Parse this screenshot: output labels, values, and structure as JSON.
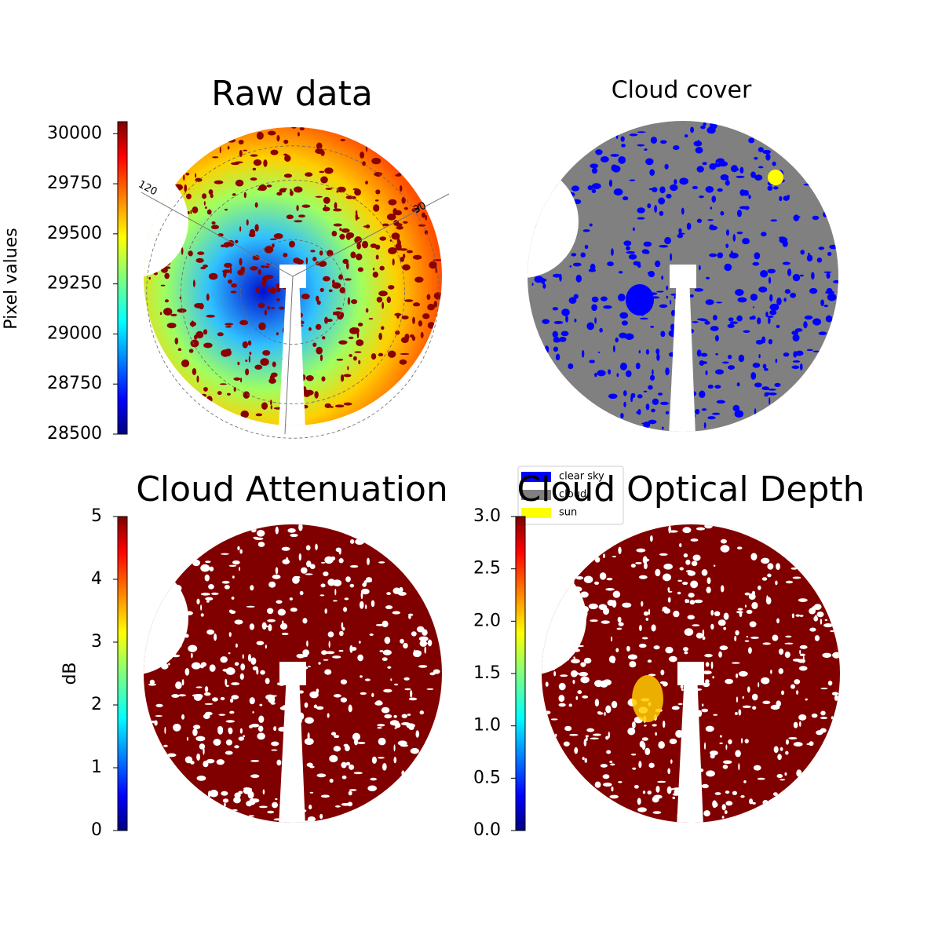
{
  "chart_data": [
    {
      "type": "image",
      "title": "Raw data",
      "colormap": "jet",
      "colorbar_label": "Pixel values",
      "clim": [
        28500,
        30060
      ],
      "cticks": [
        28500,
        28750,
        29000,
        29250,
        29500,
        29750,
        30000
      ],
      "annotations": [
        "120",
        "30"
      ]
    },
    {
      "type": "image",
      "title": "Cloud cover",
      "series": [
        {
          "name": "clear sky",
          "color": "#0000ff"
        },
        {
          "name": "cloud",
          "color": "#808080"
        },
        {
          "name": "sun",
          "color": "#ffff00"
        }
      ]
    },
    {
      "type": "image",
      "title": "Cloud Attenuation",
      "colormap": "jet",
      "colorbar_label": "dB",
      "clim": [
        0,
        5
      ],
      "cticks": [
        0,
        1,
        2,
        3,
        4,
        5
      ]
    },
    {
      "type": "image",
      "title": "Cloud Optical Depth",
      "colormap": "jet",
      "clim": [
        0,
        3
      ],
      "cticks": [
        {
          "value": 0,
          "label": "0.0"
        },
        {
          "value": 0.5,
          "label": "0.5"
        },
        {
          "value": 1,
          "label": "1.0"
        },
        {
          "value": 1.5,
          "label": "1.5"
        },
        {
          "value": 2,
          "label": "2.0"
        },
        {
          "value": 2.5,
          "label": "2.5"
        },
        {
          "value": 3,
          "label": "3.0"
        }
      ]
    }
  ]
}
